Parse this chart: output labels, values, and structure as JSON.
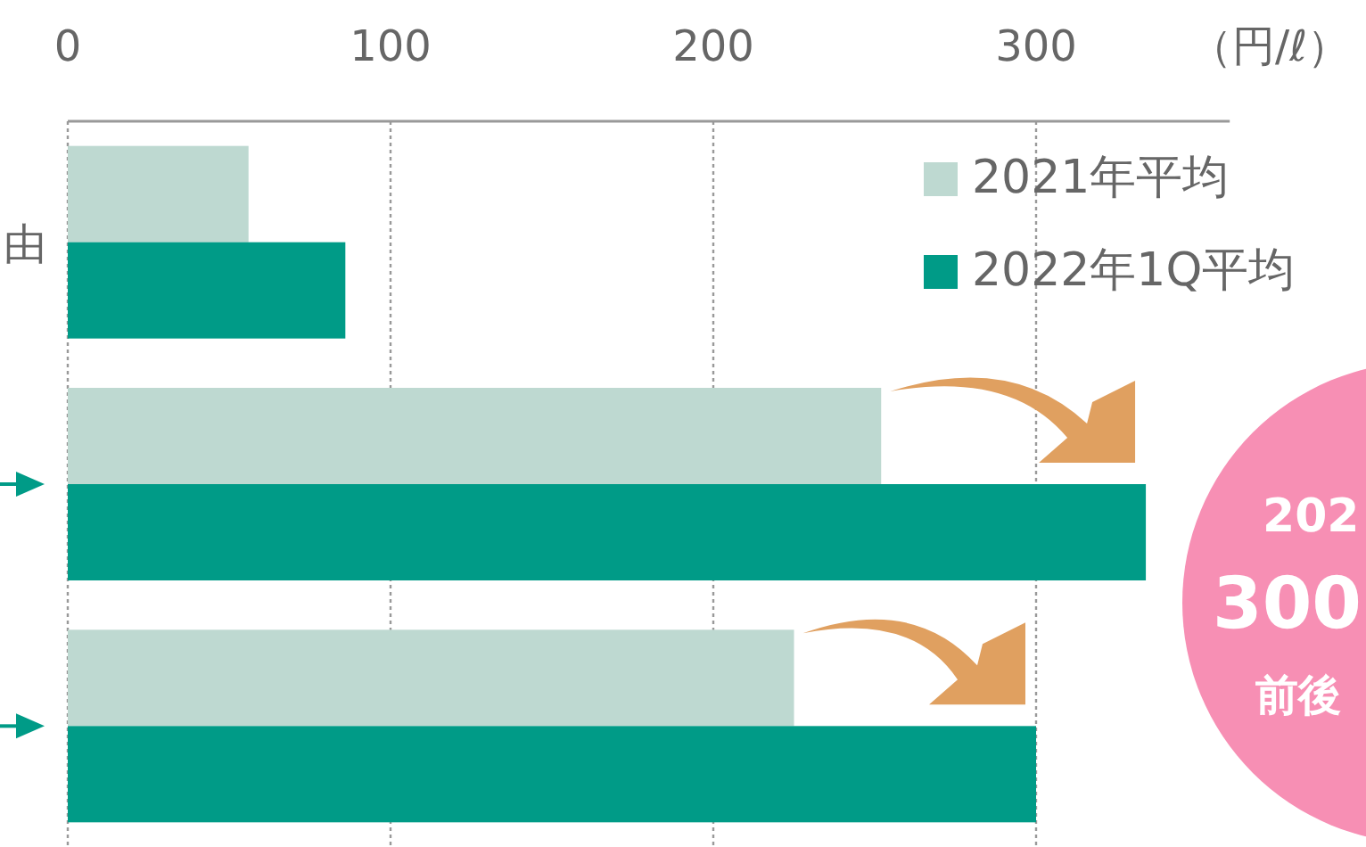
{
  "chart_data": {
    "type": "bar",
    "orientation": "horizontal",
    "categories": [
      "由",
      null,
      null
    ],
    "series": [
      {
        "name": "2021年平均",
        "color": "#bed9d1",
        "values": [
          56,
          252,
          225
        ]
      },
      {
        "name": "2022年1Q平均",
        "color": "#009b87",
        "values": [
          86,
          334,
          300
        ]
      }
    ],
    "xlabel": "（円/ℓ）",
    "xlim": [
      0,
      360
    ],
    "xticks": [
      0,
      100,
      200,
      300
    ],
    "grid": "x",
    "legend": "top right",
    "annotations": [
      "202",
      "300",
      "前後"
    ]
  }
}
